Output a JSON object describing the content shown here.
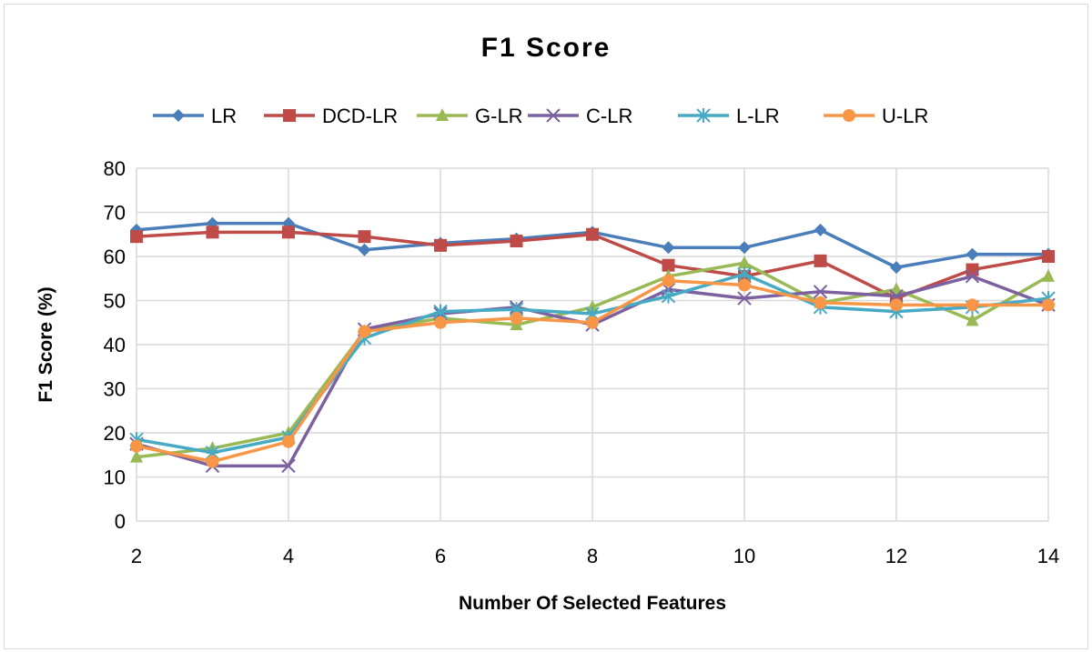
{
  "chart_data": {
    "type": "line",
    "title": "F1 Score",
    "xlabel": "Number Of Selected Features",
    "ylabel": "F1 Score (%)",
    "x": [
      2,
      3,
      4,
      5,
      6,
      7,
      8,
      9,
      10,
      11,
      12,
      13,
      14
    ],
    "xlim": [
      2,
      14
    ],
    "ylim": [
      0,
      80
    ],
    "xticks": [
      2,
      4,
      6,
      8,
      10,
      12,
      14
    ],
    "yticks": [
      0,
      10,
      20,
      30,
      40,
      50,
      60,
      70,
      80
    ],
    "grid": true,
    "legend_position": "top",
    "series": [
      {
        "name": "LR",
        "color": "#4a7ebb",
        "marker": "diamond",
        "values": [
          66,
          67.5,
          67.5,
          61.5,
          63,
          64,
          65.5,
          62,
          62,
          66,
          57.5,
          60.5,
          60.5
        ]
      },
      {
        "name": "DCD-LR",
        "color": "#be4b48",
        "marker": "square",
        "values": [
          64.5,
          65.5,
          65.5,
          64.5,
          62.5,
          63.5,
          65,
          58,
          55.5,
          59,
          50.5,
          57,
          60
        ]
      },
      {
        "name": "G-LR",
        "color": "#98b954",
        "marker": "triangle",
        "values": [
          14.5,
          16.5,
          20,
          43,
          46,
          44.5,
          48.5,
          55.5,
          58.5,
          49.5,
          52.5,
          45.5,
          55.5
        ]
      },
      {
        "name": "C-LR",
        "color": "#7d60a0",
        "marker": "x",
        "values": [
          17.5,
          12.5,
          12.5,
          43.5,
          47,
          48.5,
          44.5,
          52.5,
          50.5,
          52,
          51,
          55.5,
          49
        ]
      },
      {
        "name": "L-LR",
        "color": "#46aac5",
        "marker": "star",
        "values": [
          18.5,
          15.5,
          19,
          41.5,
          47.5,
          48,
          47,
          51,
          56,
          48.5,
          47.5,
          48.5,
          50.5
        ]
      },
      {
        "name": "U-LR",
        "color": "#f79646",
        "marker": "circle",
        "values": [
          17,
          13.5,
          18,
          43,
          45,
          46,
          45,
          54.5,
          53.5,
          49.5,
          49,
          49,
          49
        ]
      }
    ]
  }
}
